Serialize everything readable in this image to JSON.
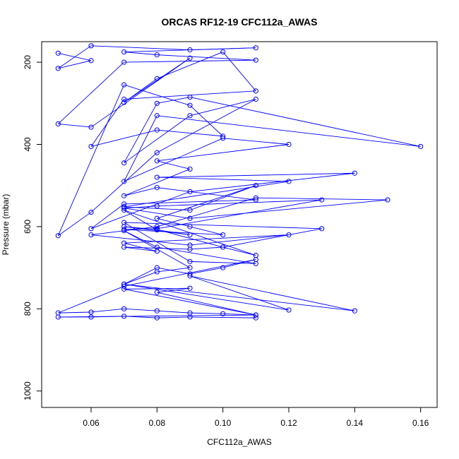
{
  "chart_data": {
    "type": "line",
    "title": "ORCAS RF12-19 CFC112a_AWAS",
    "xlabel": "CFC112a_AWAS",
    "ylabel": "Pressure (mbar)",
    "xlim": [
      0.045,
      0.165
    ],
    "ylim": [
      1040,
      150
    ],
    "y_reversed": true,
    "x_ticks": [
      0.06,
      0.08,
      0.1,
      0.12,
      0.14,
      0.16
    ],
    "x_tick_labels": [
      "0.06",
      "0.08",
      "0.10",
      "0.12",
      "0.14",
      "0.16"
    ],
    "y_ticks": [
      200,
      400,
      600,
      800,
      1000
    ],
    "y_tick_labels": [
      "200",
      "400",
      "600",
      "800",
      "1000"
    ],
    "grid": false,
    "legend": "none",
    "series": [
      {
        "color": "#0000ff",
        "marker": "open-circle",
        "x": [
          0.05,
          0.06,
          0.05,
          0.06,
          0.09,
          0.11,
          0.07,
          0.08,
          0.11,
          0.07,
          0.05,
          0.06,
          0.09,
          0.07,
          0.08,
          0.1,
          0.11,
          0.07,
          0.06,
          0.08,
          0.1,
          0.09,
          0.07,
          0.05,
          0.06,
          0.08,
          0.11,
          0.09,
          0.07,
          0.08,
          0.09,
          0.16,
          0.08,
          0.07,
          0.1,
          0.12,
          0.08,
          0.09,
          0.07,
          0.08,
          0.11,
          0.07,
          0.06,
          0.09,
          0.14,
          0.08,
          0.12,
          0.07,
          0.09,
          0.11,
          0.08,
          0.09,
          0.1,
          0.07,
          0.08,
          0.13,
          0.08,
          0.07,
          0.09,
          0.15,
          0.11,
          0.08,
          0.06,
          0.09,
          0.12,
          0.07,
          0.08,
          0.07,
          0.09,
          0.1,
          0.11,
          0.07,
          0.08,
          0.09,
          0.07,
          0.08,
          0.1,
          0.13,
          0.07,
          0.09,
          0.11,
          0.08,
          0.07,
          0.09,
          0.08,
          0.07,
          0.14,
          0.09,
          0.12,
          0.07,
          0.08,
          0.09,
          0.1,
          0.11,
          0.07,
          0.05,
          0.06,
          0.07,
          0.08,
          0.09,
          0.1,
          0.11,
          0.08,
          0.09,
          0.07,
          0.11,
          0.05,
          0.06,
          0.07,
          0.08,
          0.09,
          0.11
        ],
        "y": [
          178,
          196,
          215,
          160,
          170,
          165,
          175,
          182,
          195,
          200,
          350,
          358,
          190,
          298,
          240,
          175,
          270,
          290,
          405,
          365,
          380,
          305,
          255,
          622,
          565,
          420,
          290,
          330,
          445,
          300,
          285,
          405,
          330,
          490,
          385,
          400,
          440,
          460,
          525,
          505,
          535,
          545,
          605,
          515,
          470,
          480,
          490,
          552,
          560,
          500,
          580,
          600,
          620,
          607,
          605,
          535,
          550,
          555,
          580,
          535,
          530,
          600,
          620,
          645,
          620,
          640,
          660,
          650,
          655,
          650,
          670,
          560,
          608,
          620,
          600,
          607,
          650,
          605,
          590,
          685,
          690,
          650,
          610,
          700,
          710,
          740,
          805,
          720,
          803,
          740,
          700,
          715,
          700,
          680,
          745,
          810,
          808,
          800,
          805,
          810,
          812,
          815,
          760,
          750,
          752,
          815,
          820,
          820,
          818,
          822,
          820,
          822
        ]
      }
    ]
  }
}
